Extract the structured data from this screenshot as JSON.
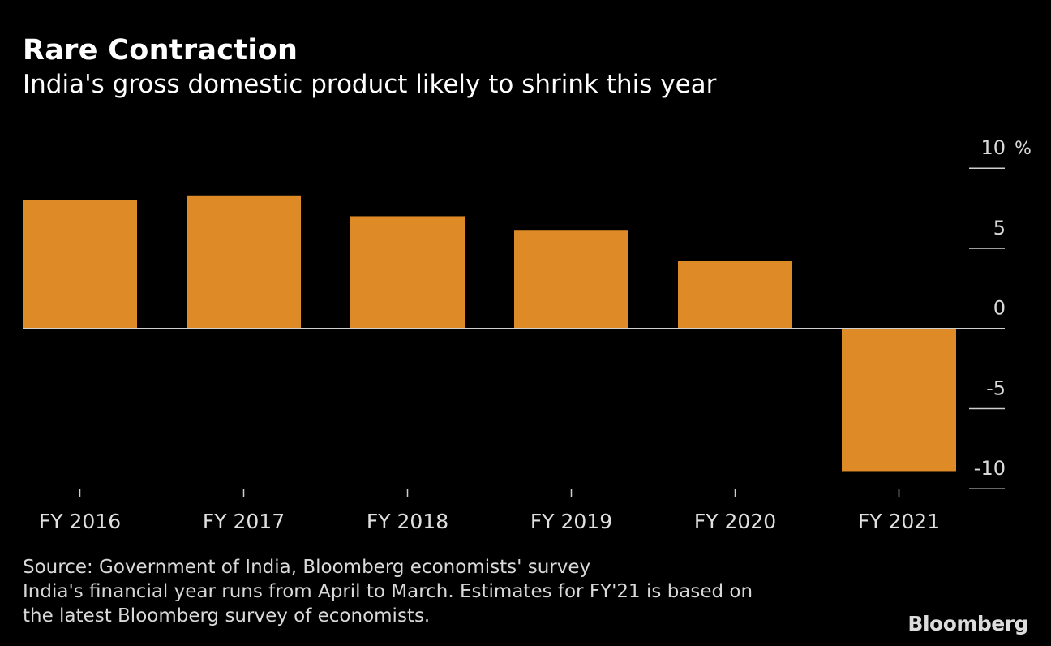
{
  "chart_data": {
    "type": "bar",
    "title": "Rare Contraction",
    "subtitle": "India's gross domestic product likely to shrink this year",
    "categories": [
      "FY 2016",
      "FY 2017",
      "FY 2018",
      "FY 2019",
      "FY 2020",
      "FY 2021"
    ],
    "values": [
      8.0,
      8.3,
      7.0,
      6.1,
      4.2,
      -8.9
    ],
    "ylim": [
      -10,
      10
    ],
    "yticks": [
      10,
      5,
      0,
      -5,
      -10
    ],
    "yunit": "%",
    "xlabel": "",
    "ylabel": "",
    "bar_color": "#DE8B27",
    "background": "#000000",
    "grid": false
  },
  "footer": {
    "source": "Source: Government of India, Bloomberg economists' survey",
    "note_line1": "India's financial year runs from April to March. Estimates for FY'21 is based on",
    "note_line2": "the latest Bloomberg survey of economists.",
    "logo": "Bloomberg"
  }
}
